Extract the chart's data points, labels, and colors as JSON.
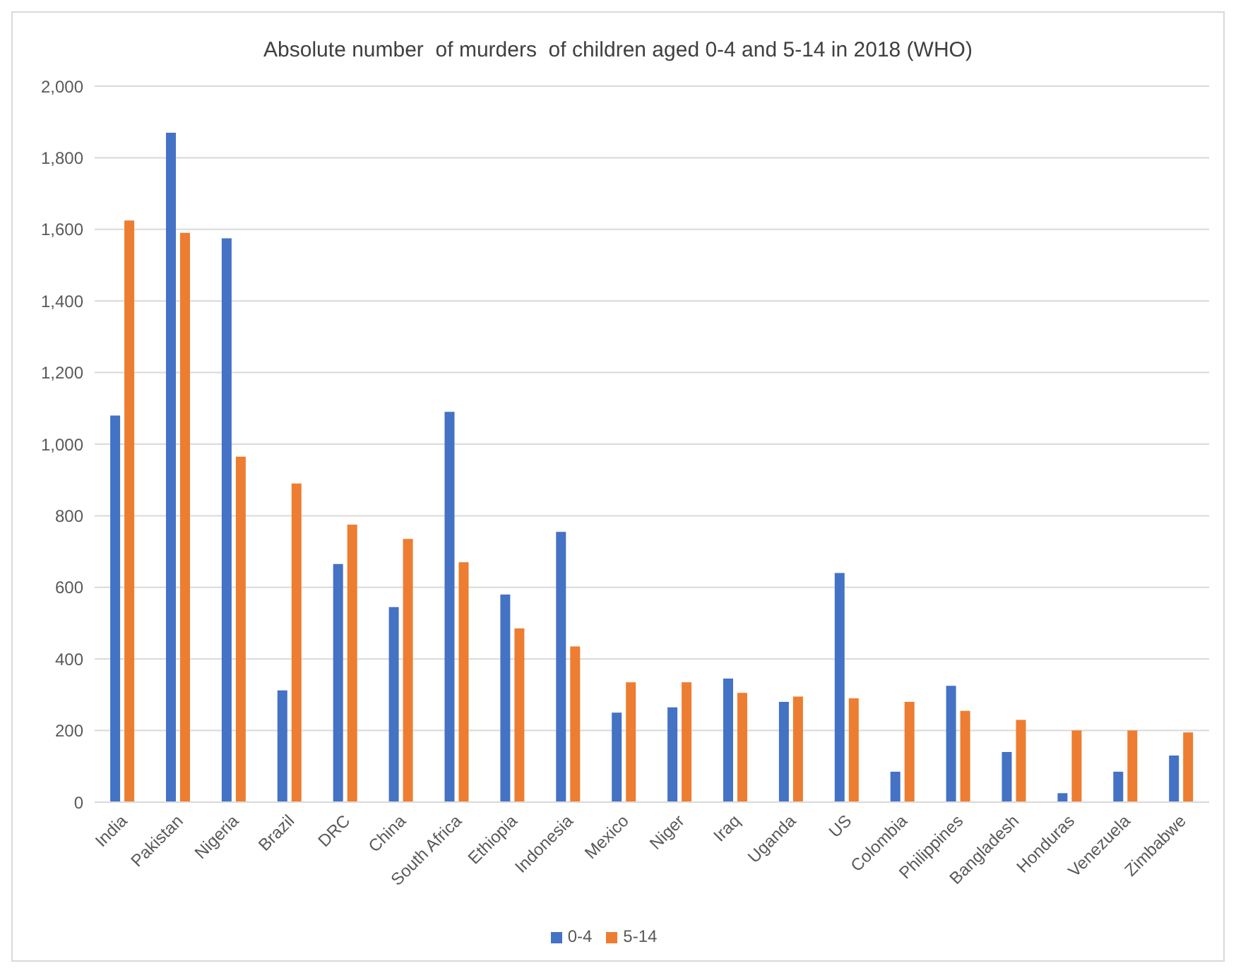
{
  "chart_data": {
    "type": "bar",
    "title": "Absolute number  of murders  of children aged 0-4 and 5-14 in 2018 (WHO)",
    "categories": [
      "India",
      "Pakistan",
      "Nigeria",
      "Brazil",
      "DRC",
      "China",
      "South Africa",
      "Ethiopia",
      "Indonesia",
      "Mexico",
      "Niger",
      "Iraq",
      "Uganda",
      "US",
      "Colombia",
      "Philippines",
      "Bangladesh",
      "Honduras",
      "Venezuela",
      "Zimbabwe"
    ],
    "series": [
      {
        "name": "0-4",
        "color": "#4472c4",
        "values": [
          1080,
          1870,
          1575,
          312,
          665,
          545,
          1090,
          580,
          755,
          250,
          265,
          345,
          280,
          640,
          85,
          325,
          140,
          25,
          85,
          130
        ]
      },
      {
        "name": "5-14",
        "color": "#ed7d31",
        "values": [
          1625,
          1590,
          965,
          890,
          775,
          735,
          670,
          485,
          435,
          335,
          335,
          305,
          295,
          290,
          280,
          255,
          230,
          200,
          200,
          195
        ]
      }
    ],
    "ylim": [
      0,
      2000
    ],
    "yticks": [
      {
        "value": 0,
        "label": "0"
      },
      {
        "value": 200,
        "label": "200"
      },
      {
        "value": 400,
        "label": "400"
      },
      {
        "value": 600,
        "label": "600"
      },
      {
        "value": 800,
        "label": "800"
      },
      {
        "value": 1000,
        "label": "1,000"
      },
      {
        "value": 1200,
        "label": "1,200"
      },
      {
        "value": 1400,
        "label": "1,400"
      },
      {
        "value": 1600,
        "label": "1,600"
      },
      {
        "value": 1800,
        "label": "1,800"
      },
      {
        "value": 2000,
        "label": "2,000"
      }
    ],
    "grid": "y",
    "legend": "bottom"
  }
}
